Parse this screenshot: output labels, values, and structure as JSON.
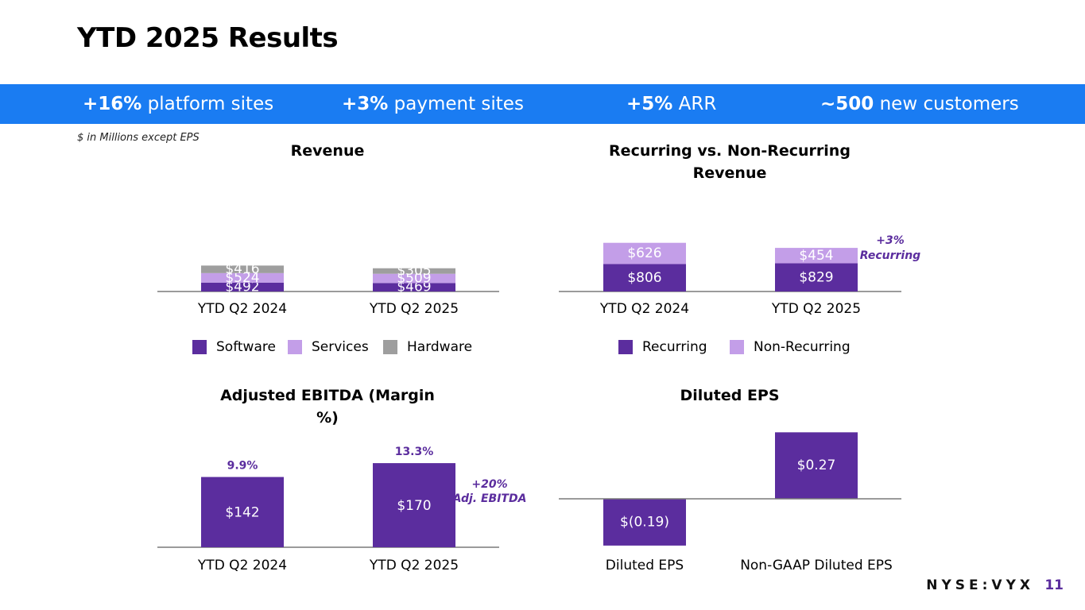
{
  "page": {
    "title": "YTD 2025 Results",
    "note": "$ in Millions except EPS",
    "footer": "NYSE:VYX",
    "page_number": "11"
  },
  "kpis": [
    {
      "value": "+16%",
      "label": "platform sites"
    },
    {
      "value": "+3%",
      "label": "payment sites"
    },
    {
      "value": "+5%",
      "label": "ARR"
    },
    {
      "value": "~500",
      "label": "new customers"
    }
  ],
  "colors": {
    "banner": "#1a7cf2",
    "software": "#5b2d9e",
    "services": "#c39ee8",
    "hardware": "#9e9e9e",
    "accent": "#5b2d9e"
  },
  "chart_data": [
    {
      "type": "bar",
      "stacked": true,
      "title": "Revenue",
      "categories": [
        "YTD Q2 2024",
        "YTD Q2 2025"
      ],
      "series": [
        {
          "name": "Software",
          "values": [
            492,
            469
          ],
          "labels": [
            "$492",
            "$469"
          ],
          "color": "#5b2d9e"
        },
        {
          "name": "Services",
          "values": [
            524,
            509
          ],
          "labels": [
            "$524",
            "$509"
          ],
          "color": "#c39ee8"
        },
        {
          "name": "Hardware",
          "values": [
            416,
            305
          ],
          "labels": [
            "$416",
            "$305"
          ],
          "color": "#9e9e9e"
        }
      ]
    },
    {
      "type": "bar",
      "stacked": true,
      "title": "Recurring vs. Non-Recurring Revenue",
      "categories": [
        "YTD Q2 2024",
        "YTD Q2 2025"
      ],
      "series": [
        {
          "name": "Recurring",
          "values": [
            806,
            829
          ],
          "labels": [
            "$806",
            "$829"
          ],
          "color": "#5b2d9e"
        },
        {
          "name": "Non-Recurring",
          "values": [
            626,
            454
          ],
          "labels": [
            "$626",
            "$454"
          ],
          "color": "#c39ee8"
        }
      ],
      "annotation": [
        "+3%",
        "Recurring"
      ]
    },
    {
      "type": "bar",
      "title": "Adjusted EBITDA (Margin %)",
      "categories": [
        "YTD Q2 2024",
        "YTD Q2 2025"
      ],
      "values": [
        142,
        170
      ],
      "labels": [
        "$142",
        "$170"
      ],
      "margins": [
        "9.9%",
        "13.3%"
      ],
      "annotation": [
        "+20%",
        "Adj. EBITDA"
      ],
      "color": "#5b2d9e"
    },
    {
      "type": "bar",
      "title": "Diluted EPS",
      "categories": [
        "Diluted EPS",
        "Non-GAAP Diluted EPS"
      ],
      "values": [
        -0.19,
        0.27
      ],
      "labels": [
        "$(0.19)",
        "$0.27"
      ],
      "color": "#5b2d9e"
    }
  ]
}
